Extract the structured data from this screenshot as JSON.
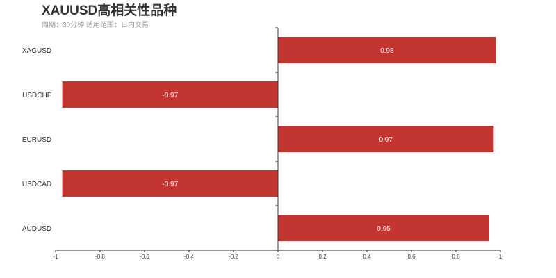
{
  "chart_data": {
    "type": "bar",
    "orientation": "horizontal",
    "title": "XAUUSD高相关性品种",
    "subtitle": "周期：30分钟 适用范围：日内交易",
    "categories": [
      "XAGUSD",
      "USDCHF",
      "EURUSD",
      "USDCAD",
      "AUDUSD"
    ],
    "values": [
      0.98,
      -0.97,
      0.97,
      -0.97,
      0.95
    ],
    "xlim": [
      -1,
      1
    ],
    "xticks": [
      "-1",
      "-0.8",
      "-0.6",
      "-0.4",
      "-0.2",
      "0",
      "0.2",
      "0.4",
      "0.6",
      "0.8",
      "1"
    ],
    "xlabel": "",
    "ylabel": "",
    "grid": false,
    "bar_color": "#c23531"
  }
}
